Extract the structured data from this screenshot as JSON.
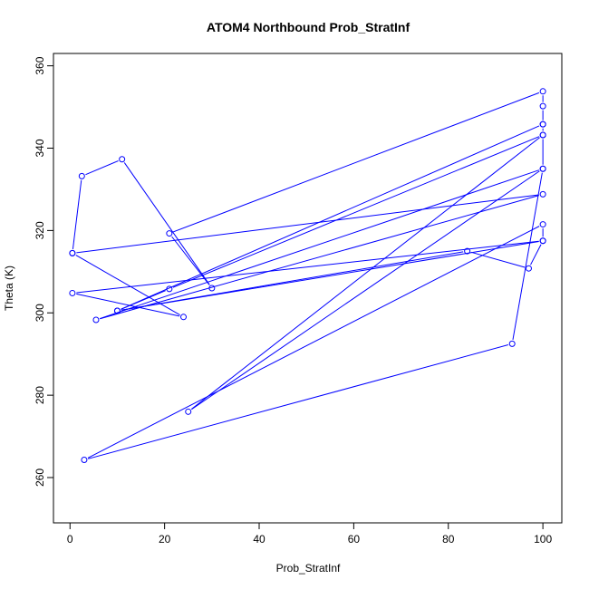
{
  "chart_data": {
    "type": "line",
    "title": "ATOM4 Northbound Prob_StratInf",
    "xlabel": "Prob_StratInf",
    "ylabel": "Theta (K)",
    "xlim": [
      -3.5,
      104
    ],
    "ylim": [
      249,
      363
    ],
    "x_ticks": [
      0,
      20,
      40,
      60,
      80,
      100
    ],
    "y_ticks": [
      260,
      280,
      300,
      320,
      340,
      360
    ],
    "grid": false,
    "legend": "none",
    "marker": "open-circle",
    "series_color": "#0000ff",
    "x": [
      0.5,
      2.5,
      11,
      30,
      21,
      100,
      100,
      100,
      100,
      100,
      5.5,
      100,
      0.5,
      24,
      0.5,
      100,
      100,
      3,
      93.5,
      100,
      25,
      100,
      21,
      10,
      84,
      97,
      100,
      10,
      100
    ],
    "y": [
      314.5,
      333.2,
      337.3,
      306.0,
      319.3,
      353.8,
      350.2,
      345.8,
      343.2,
      335.0,
      298.3,
      328.8,
      314.5,
      299.0,
      304.8,
      317.5,
      321.5,
      264.3,
      292.5,
      335.0,
      276.0,
      343.2,
      305.8,
      300.5,
      315.0,
      310.8,
      317.5,
      300.5,
      345.8
    ]
  }
}
